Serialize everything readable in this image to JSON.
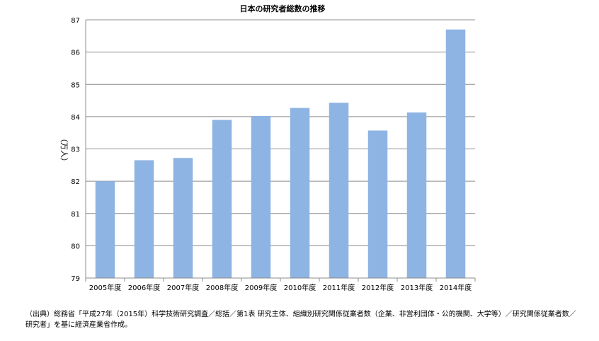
{
  "chart_data": {
    "type": "bar",
    "title": "日本の研究者総数の推移",
    "xlabel": "",
    "ylabel": "（万人）",
    "categories": [
      "2005年度",
      "2006年度",
      "2007年度",
      "2008年度",
      "2009年度",
      "2010年度",
      "2011年度",
      "2012年度",
      "2013年度",
      "2014年度"
    ],
    "values": [
      82.0,
      82.65,
      82.72,
      83.9,
      84.02,
      84.27,
      84.43,
      83.57,
      84.13,
      86.7
    ],
    "ylim": [
      79,
      87
    ],
    "yticks": [
      "79",
      "80",
      "81",
      "82",
      "83",
      "84",
      "85",
      "86",
      "87"
    ],
    "grid": true,
    "legend": "none",
    "bar_color": "#8eb4e3"
  },
  "source_note": "（出典）総務省「平成27年（2015年）科学技術研究調査／総括／第1表 研究主体、組織別研究関係従業者数（企業、非営利団体・公的機関、大学等）／研究関係従業者数／研究者」を基に経済産業省作成。"
}
